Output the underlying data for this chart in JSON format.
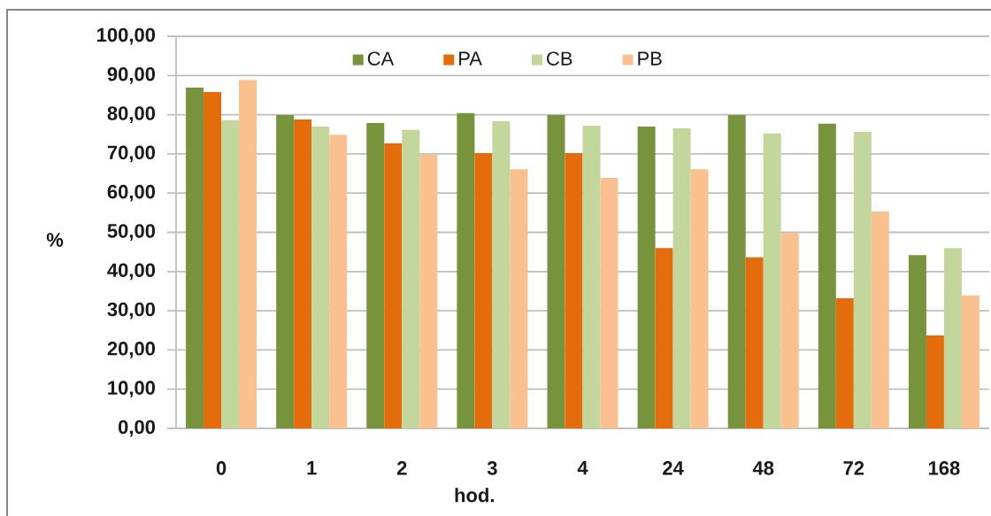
{
  "chart_data": {
    "type": "bar",
    "xlabel": "hod.",
    "ylabel": "%",
    "categories": [
      "0",
      "1",
      "2",
      "3",
      "4",
      "24",
      "48",
      "72",
      "168"
    ],
    "series": [
      {
        "name": "CA",
        "color": "#77933c",
        "values": [
          86.9,
          79.9,
          77.9,
          80.4,
          79.9,
          77.0,
          79.9,
          77.7,
          44.2
        ]
      },
      {
        "name": "PA",
        "color": "#e46c0a",
        "values": [
          85.8,
          78.8,
          72.7,
          70.2,
          70.2,
          46.0,
          43.6,
          33.2,
          23.7
        ]
      },
      {
        "name": "CB",
        "color": "#c3d69b",
        "values": [
          78.6,
          77.0,
          76.1,
          78.3,
          77.2,
          76.5,
          75.2,
          75.6,
          46.0
        ]
      },
      {
        "name": "PB",
        "color": "#fac090",
        "values": [
          88.9,
          74.9,
          69.8,
          66.1,
          63.9,
          66.1,
          49.9,
          55.3,
          33.9
        ]
      }
    ],
    "ylim": [
      0,
      100
    ],
    "yticks": [
      {
        "value": 0,
        "label": "0,00"
      },
      {
        "value": 10,
        "label": "10,00"
      },
      {
        "value": 20,
        "label": "20,00"
      },
      {
        "value": 30,
        "label": "30,00"
      },
      {
        "value": 40,
        "label": "40,00"
      },
      {
        "value": 50,
        "label": "50,00"
      },
      {
        "value": 60,
        "label": "60,00"
      },
      {
        "value": 70,
        "label": "70,00"
      },
      {
        "value": 80,
        "label": "80,00"
      },
      {
        "value": 90,
        "label": "90,00"
      },
      {
        "value": 100,
        "label": "100,00"
      }
    ],
    "grid": "y",
    "legend": "top"
  }
}
